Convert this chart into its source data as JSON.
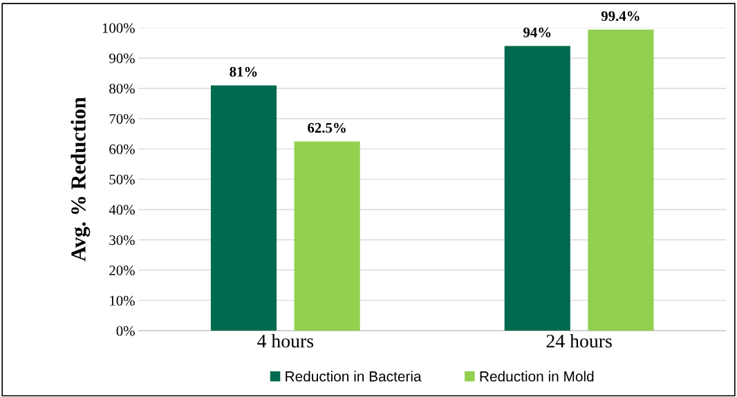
{
  "chart_data": {
    "type": "bar",
    "ylabel": "Avg. % Reduction",
    "categories": [
      "4 hours",
      "24 hours"
    ],
    "series": [
      {
        "name": "Reduction in Bacteria",
        "color": "#006a4e",
        "values": [
          81,
          94
        ],
        "value_labels": [
          "81%",
          "94%"
        ]
      },
      {
        "name": "Reduction in Mold",
        "color": "#92d050",
        "values": [
          62.5,
          99.4
        ],
        "value_labels": [
          "62.5%",
          "99.4%"
        ]
      }
    ],
    "ylim": [
      0,
      100
    ],
    "yticks": [
      {
        "value": 0,
        "label": "0%"
      },
      {
        "value": 10,
        "label": "10%"
      },
      {
        "value": 20,
        "label": "20%"
      },
      {
        "value": 30,
        "label": "30%"
      },
      {
        "value": 40,
        "label": "40%"
      },
      {
        "value": 50,
        "label": "50%"
      },
      {
        "value": 60,
        "label": "60%"
      },
      {
        "value": 70,
        "label": "70%"
      },
      {
        "value": 80,
        "label": "80%"
      },
      {
        "value": 90,
        "label": "90%"
      },
      {
        "value": 100,
        "label": "100%"
      }
    ],
    "grid": "y",
    "legend": "bottom"
  }
}
